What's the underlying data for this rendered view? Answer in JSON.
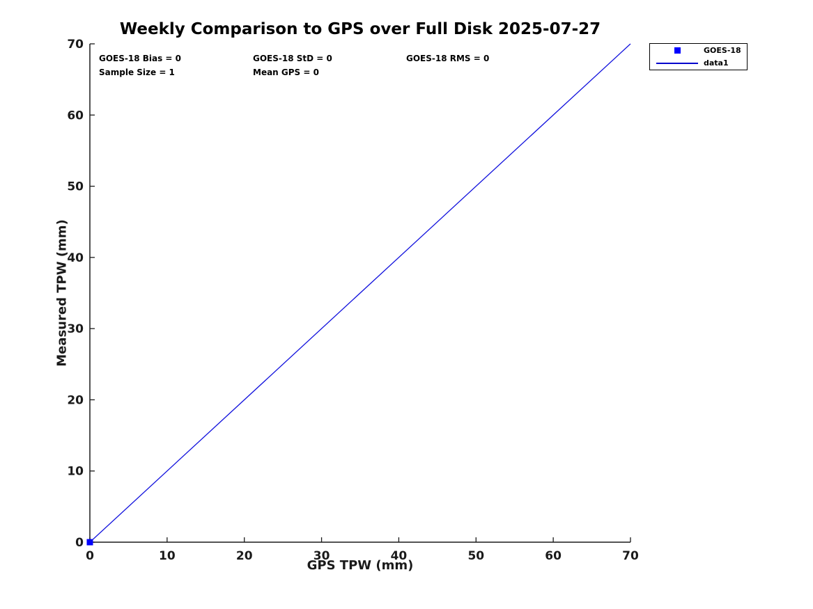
{
  "figure": {
    "title": "Weekly Comparison to GPS over Full Disk 2025-07-27",
    "background_color": "#ffffff"
  },
  "annotations": {
    "bias": "GOES-18 Bias = 0",
    "std": "GOES-18 StD = 0",
    "rms": "GOES-18 RMS = 0",
    "sample_size": "Sample Size = 1",
    "mean_gps": "Mean GPS = 0"
  },
  "legend": {
    "entries": [
      {
        "label": "GOES-18",
        "icon": "square-marker",
        "color": "#0000ff"
      },
      {
        "label": "data1",
        "icon": "line",
        "color": "#0000cc"
      }
    ]
  },
  "chart_data": {
    "type": "scatter",
    "title": "Weekly Comparison to GPS over Full Disk 2025-07-27",
    "xlabel": "GPS TPW (mm)",
    "ylabel": "Measured TPW (mm)",
    "xlim": [
      0,
      70
    ],
    "ylim": [
      0,
      70
    ],
    "x_ticks": [
      0,
      10,
      20,
      30,
      40,
      50,
      60,
      70
    ],
    "y_ticks": [
      0,
      10,
      20,
      30,
      40,
      50,
      60,
      70
    ],
    "grid": false,
    "box": false,
    "legend_position": "outside-top-right",
    "axis_color": "#1a1a1a",
    "tick_label_color": "#1a1a1a",
    "series": [
      {
        "name": "GOES-18",
        "type": "scatter",
        "marker": "square",
        "marker_size": 9,
        "color": "#0000ff",
        "points": [
          [
            0,
            0
          ]
        ]
      },
      {
        "name": "data1",
        "type": "line",
        "color": "#1111dd",
        "line_width": 1.3,
        "points": [
          [
            0,
            0
          ],
          [
            70,
            70
          ]
        ]
      }
    ]
  }
}
